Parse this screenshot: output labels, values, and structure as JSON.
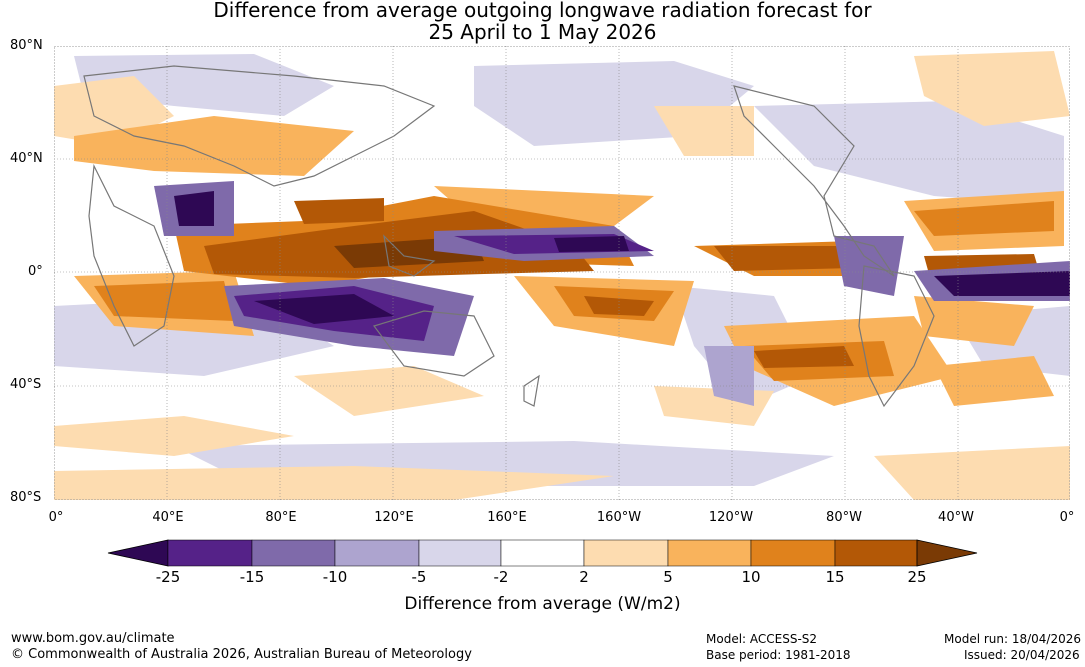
{
  "title": {
    "line1": "Difference from average outgoing longwave radiation forecast for",
    "line2": "25 April to 1 May 2026"
  },
  "lat_labels": [
    "80°N",
    "40°N",
    "0°",
    "40°S",
    "80°S"
  ],
  "lon_labels": [
    "0°",
    "40°E",
    "80°E",
    "120°E",
    "160°E",
    "160°W",
    "120°W",
    "80°W",
    "40°W",
    "0°"
  ],
  "colorbar": {
    "ticks": [
      "-25",
      "-15",
      "-10",
      "-5",
      "-2",
      "2",
      "5",
      "10",
      "15",
      "25"
    ],
    "colors": [
      "#2e0854",
      "#552288",
      "#7f6aaa",
      "#ada4cf",
      "#d8d6ea",
      "#ffffff",
      "#fddcb0",
      "#f9b35c",
      "#e0821c",
      "#b35806",
      "#7a3a05"
    ],
    "label": "Difference from average (W/m2)"
  },
  "footer": {
    "url": "www.bom.gov.au/climate",
    "copyright": "© Commonwealth of Australia 2026, Australian Bureau of Meteorology",
    "model": "Model: ACCESS-S2",
    "base_period": "Base period: 1981-2018",
    "model_run": "Model run: 18/04/2026",
    "issued": "Issued: 20/04/2026"
  }
}
